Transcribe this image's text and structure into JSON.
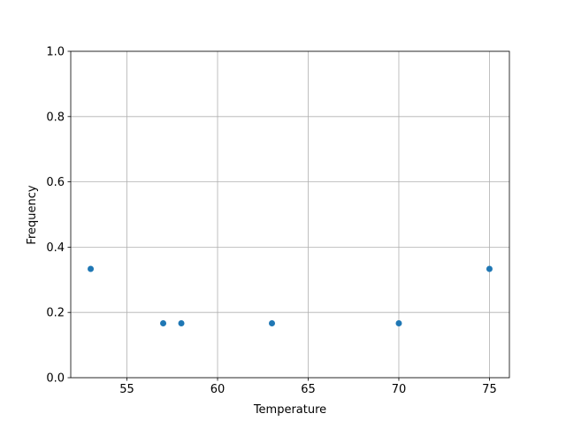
{
  "chart_data": {
    "type": "scatter",
    "title": "",
    "xlabel": "Temperature",
    "ylabel": "Frequency",
    "xlim": [
      51.9,
      76.1
    ],
    "ylim": [
      0,
      1
    ],
    "grid": true,
    "x_ticks": [
      55,
      60,
      65,
      70,
      75
    ],
    "x_tick_labels": [
      "55",
      "60",
      "65",
      "70",
      "75"
    ],
    "y_ticks": [
      0,
      0.2,
      0.4,
      0.6,
      0.8,
      1.0
    ],
    "y_tick_labels": [
      "0.0",
      "0.2",
      "0.4",
      "0.6",
      "0.8",
      "1.0"
    ],
    "marker_color": "#1f77b4",
    "grid_color": "#b0b0b0",
    "points": [
      {
        "x": 53,
        "y": 0.3333
      },
      {
        "x": 57,
        "y": 0.1667
      },
      {
        "x": 58,
        "y": 0.1667
      },
      {
        "x": 63,
        "y": 0.1667
      },
      {
        "x": 70,
        "y": 0.1667
      },
      {
        "x": 75,
        "y": 0.3333
      }
    ]
  }
}
